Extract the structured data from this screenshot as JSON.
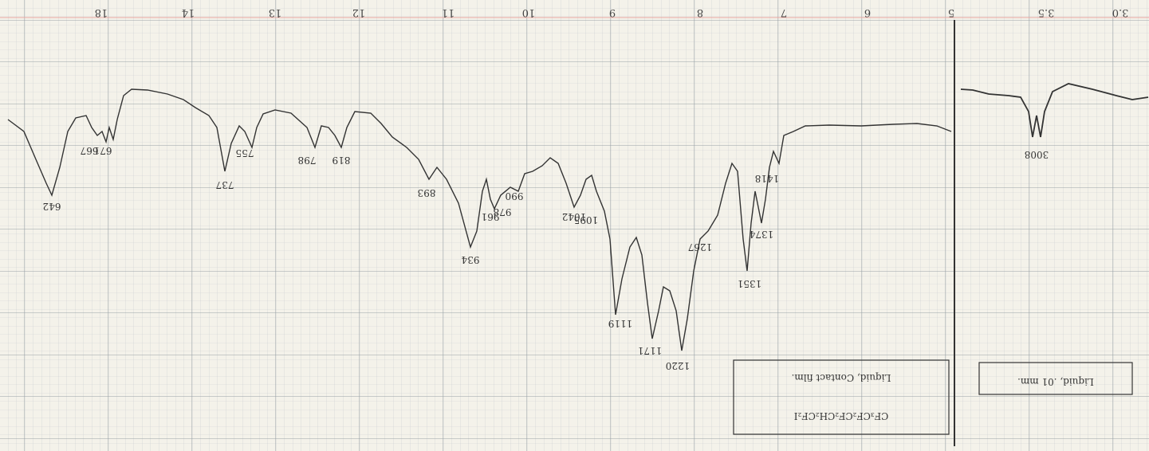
{
  "axis_labels": [
    "18",
    "14",
    "13",
    "12",
    "11",
    "10",
    "9",
    "8",
    "7",
    "6",
    "5",
    "3.5",
    "3.0"
  ],
  "peak_labels": [
    "642",
    "667",
    "671",
    "737",
    "755",
    "798",
    "819",
    "893",
    "934",
    "961",
    "978",
    "990",
    "1042",
    "1095",
    "1119",
    "1171",
    "1220",
    "1267",
    "1351",
    "1374",
    "1418",
    "3008"
  ],
  "sample": {
    "formula": "CF₃CF₂CF₂CH₂CF₂I",
    "note_left": "Liquid, Contact film.",
    "note_right": "Liquid, .01 mm."
  }
}
